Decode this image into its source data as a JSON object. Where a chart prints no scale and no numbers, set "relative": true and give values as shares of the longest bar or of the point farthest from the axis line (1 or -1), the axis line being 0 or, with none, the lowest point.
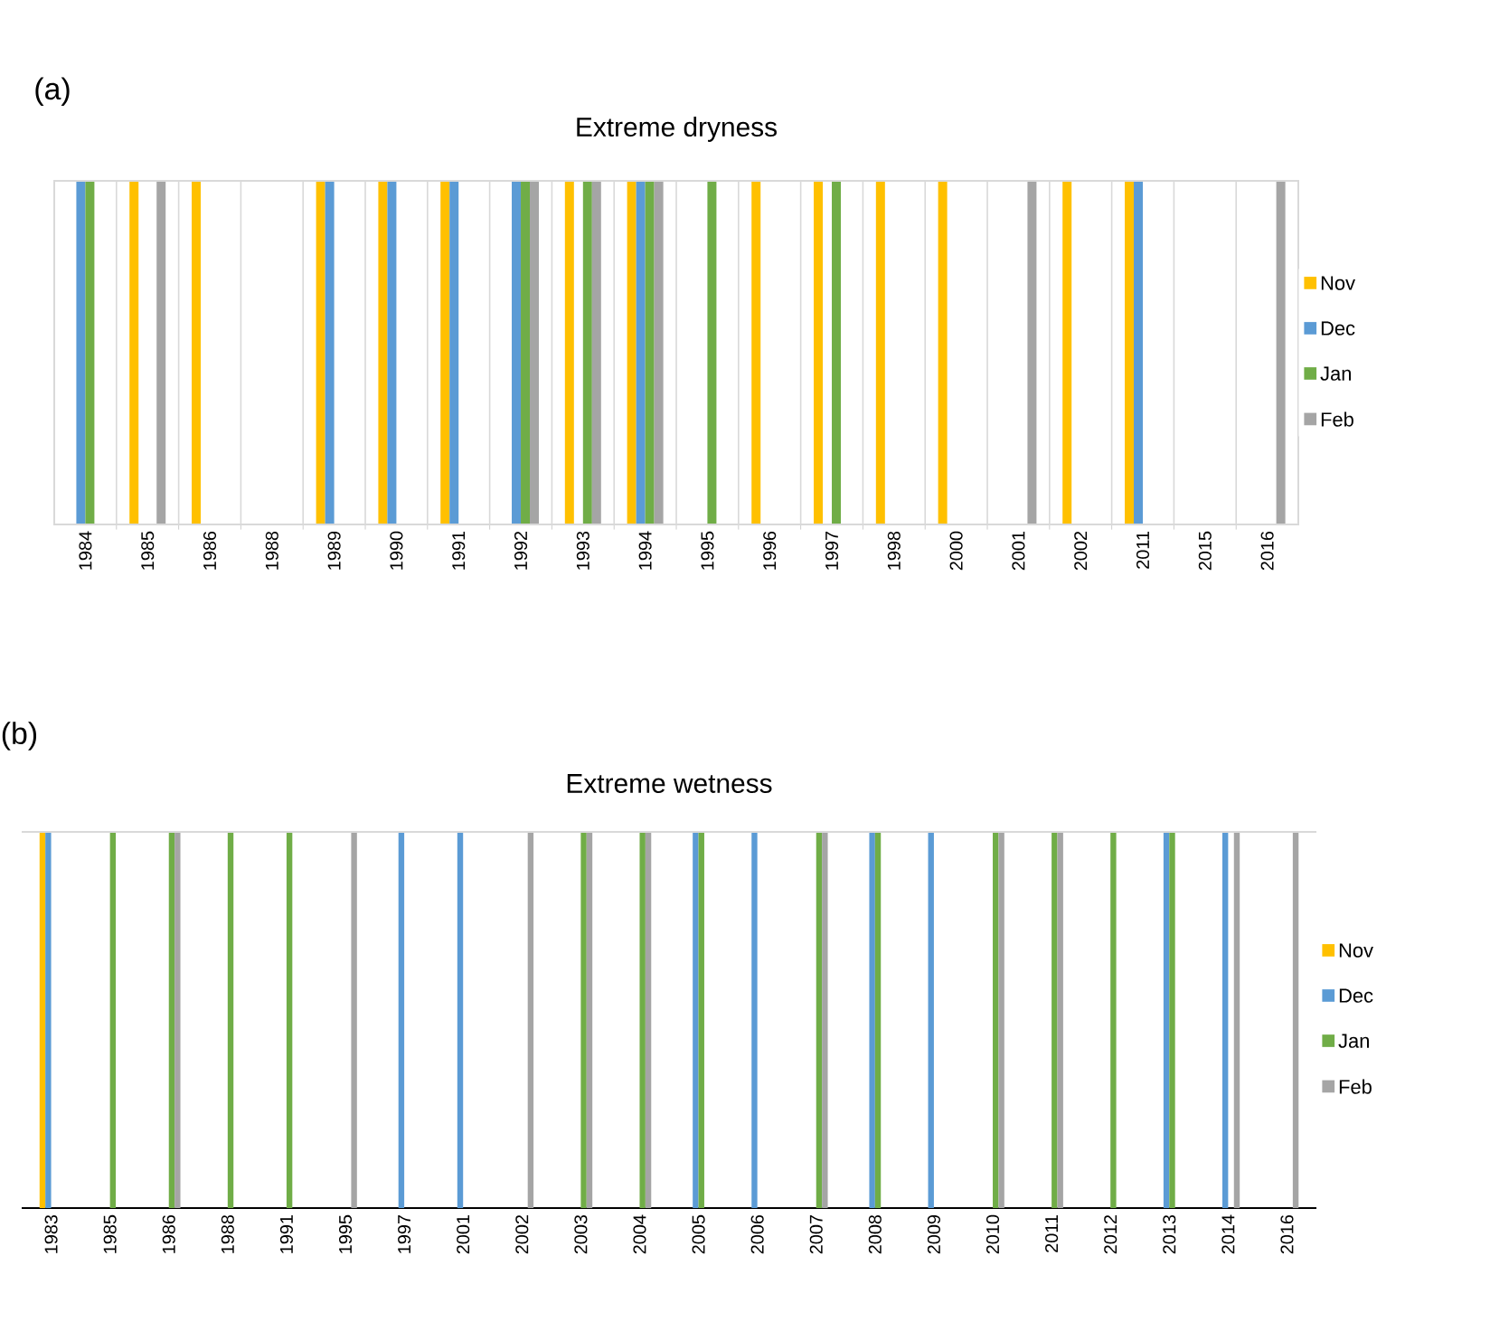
{
  "chart_data": [
    {
      "type": "bar",
      "title": "Extreme dryness",
      "annotations": [
        "(a)"
      ],
      "relative": true,
      "grid": "x",
      "legend": "right",
      "categories": [
        "1984",
        "1985",
        "1986",
        "1988",
        "1989",
        "1990",
        "1991",
        "1992",
        "1993",
        "1994",
        "1995",
        "1996",
        "1997",
        "1998",
        "2000",
        "2001",
        "2002",
        "2011",
        "2015",
        "2016"
      ],
      "series": [
        {
          "name": "Nov",
          "color": "#ffc000",
          "values": [
            null,
            1,
            1,
            null,
            1,
            1,
            1,
            null,
            1,
            1,
            null,
            1,
            1,
            1,
            1,
            null,
            1,
            1,
            null,
            null
          ]
        },
        {
          "name": "Dec",
          "color": "#5b9bd5",
          "values": [
            1,
            null,
            null,
            null,
            1,
            1,
            1,
            1,
            null,
            1,
            null,
            null,
            null,
            null,
            null,
            null,
            null,
            1,
            null,
            null
          ]
        },
        {
          "name": "Jan",
          "color": "#70ad47",
          "values": [
            1,
            null,
            null,
            null,
            null,
            null,
            null,
            1,
            1,
            1,
            1,
            null,
            1,
            null,
            null,
            null,
            null,
            null,
            null,
            null
          ]
        },
        {
          "name": "Feb",
          "color": "#a5a5a5",
          "values": [
            null,
            1,
            null,
            null,
            null,
            null,
            null,
            1,
            1,
            1,
            null,
            null,
            null,
            null,
            null,
            1,
            null,
            null,
            null,
            1
          ]
        }
      ]
    },
    {
      "type": "bar",
      "title": "Extreme wetness",
      "annotations": [
        "(b)"
      ],
      "relative": true,
      "legend": "right",
      "categories": [
        "1983",
        "1985",
        "1986",
        "1988",
        "1991",
        "1995",
        "1997",
        "2001",
        "2002",
        "2003",
        "2004",
        "2005",
        "2006",
        "2007",
        "2008",
        "2009",
        "2010",
        "2011",
        "2012",
        "2013",
        "2014",
        "2016"
      ],
      "series": [
        {
          "name": "Nov",
          "color": "#ffc000",
          "values": [
            1,
            null,
            null,
            null,
            null,
            null,
            null,
            null,
            null,
            null,
            null,
            null,
            null,
            null,
            null,
            null,
            null,
            null,
            null,
            null,
            null,
            null
          ]
        },
        {
          "name": "Dec",
          "color": "#5b9bd5",
          "values": [
            1,
            null,
            null,
            null,
            null,
            null,
            1,
            1,
            null,
            null,
            null,
            1,
            1,
            null,
            1,
            1,
            null,
            null,
            null,
            1,
            1,
            null
          ]
        },
        {
          "name": "Jan",
          "color": "#70ad47",
          "values": [
            null,
            1,
            1,
            1,
            1,
            null,
            null,
            null,
            null,
            1,
            1,
            1,
            null,
            1,
            1,
            null,
            1,
            1,
            1,
            1,
            null,
            null
          ]
        },
        {
          "name": "Feb",
          "color": "#a5a5a5",
          "values": [
            null,
            null,
            1,
            null,
            null,
            1,
            null,
            null,
            1,
            1,
            1,
            null,
            null,
            1,
            null,
            null,
            1,
            1,
            null,
            null,
            1,
            1
          ]
        }
      ]
    }
  ]
}
